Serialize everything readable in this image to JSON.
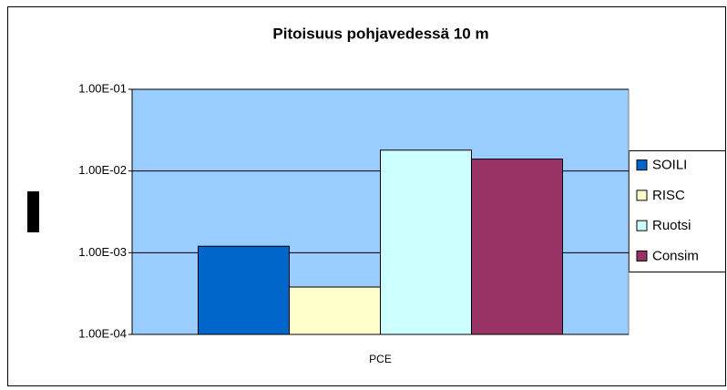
{
  "chart_data": {
    "type": "bar",
    "title": "Pitoisuus pohjavedessä 10 m",
    "categories": [
      "PCE"
    ],
    "series": [
      {
        "name": "SOILI",
        "color": "#0066cc",
        "values": [
          0.0012
        ]
      },
      {
        "name": "RISC",
        "color": "#ffffcc",
        "values": [
          0.00038
        ]
      },
      {
        "name": "Ruotsi",
        "color": "#ccffff",
        "values": [
          0.018
        ]
      },
      {
        "name": "Consim",
        "color": "#993366",
        "values": [
          0.014
        ]
      }
    ],
    "yscale": "log",
    "ylim": [
      0.0001,
      0.1
    ],
    "yticks": [
      {
        "value": 0.0001,
        "label": "1.00E-04"
      },
      {
        "value": 0.001,
        "label": "1.00E-03"
      },
      {
        "value": 0.01,
        "label": "1.00E-02"
      },
      {
        "value": 0.1,
        "label": "1.00E-01"
      }
    ],
    "grid": true,
    "legend": "right",
    "plot_background": "#99ccff"
  }
}
